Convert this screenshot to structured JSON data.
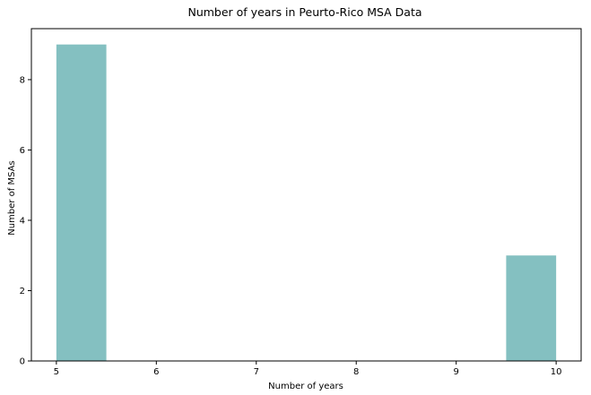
{
  "chart_data": {
    "type": "bar",
    "title": "Number of years in Peurto-Rico MSA Data",
    "xlabel": "Number of years",
    "ylabel": "Number of MSAs",
    "xlim": [
      4.75,
      10.25
    ],
    "ylim": [
      0,
      9.45
    ],
    "xticks": [
      5,
      6,
      7,
      8,
      9,
      10
    ],
    "yticks": [
      0,
      2,
      4,
      6,
      8
    ],
    "bins": [
      {
        "x0": 5.0,
        "x1": 5.5,
        "value": 9
      },
      {
        "x0": 5.5,
        "x1": 6.0,
        "value": 0
      },
      {
        "x0": 6.0,
        "x1": 6.5,
        "value": 0
      },
      {
        "x0": 6.5,
        "x1": 7.0,
        "value": 0
      },
      {
        "x0": 7.0,
        "x1": 7.5,
        "value": 0
      },
      {
        "x0": 7.5,
        "x1": 8.0,
        "value": 0
      },
      {
        "x0": 8.0,
        "x1": 8.5,
        "value": 0
      },
      {
        "x0": 8.5,
        "x1": 9.0,
        "value": 0
      },
      {
        "x0": 9.0,
        "x1": 9.5,
        "value": 0
      },
      {
        "x0": 9.5,
        "x1": 10.0,
        "value": 3
      }
    ],
    "bar_color": "#84c0c1",
    "grid": false,
    "legend": "none"
  }
}
